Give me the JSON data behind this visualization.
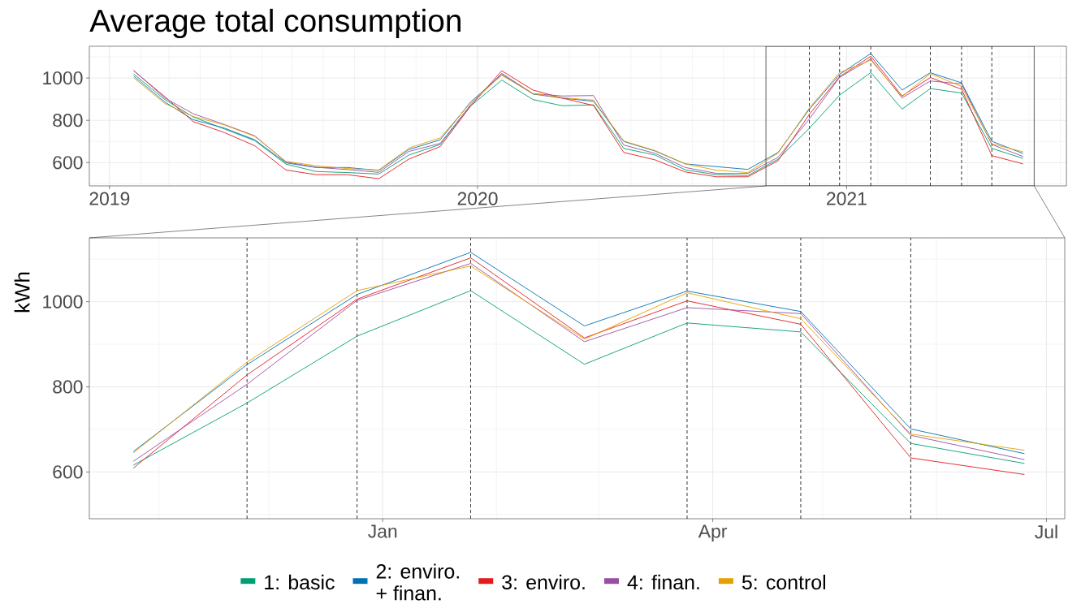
{
  "chart_data": [
    {
      "type": "line",
      "title": "Average total consumption",
      "x": [
        "2019-01-25",
        "2019-02-25",
        "2019-03-25",
        "2019-04-25",
        "2019-05-25",
        "2019-06-25",
        "2019-07-25",
        "2019-08-25",
        "2019-09-25",
        "2019-10-25",
        "2019-11-25",
        "2019-12-25",
        "2020-01-25",
        "2020-02-25",
        "2020-03-25",
        "2020-04-25",
        "2020-05-25",
        "2020-06-25",
        "2020-07-25",
        "2020-08-25",
        "2020-09-25",
        "2020-10-25",
        "2020-11-25",
        "2020-12-25",
        "2021-01-25",
        "2021-02-25",
        "2021-03-25",
        "2021-04-25",
        "2021-05-25",
        "2021-06-25"
      ],
      "series": [
        {
          "color": "#009e73",
          "values": [
            1019,
            898,
            816,
            759,
            704,
            593,
            558,
            553,
            546,
            636,
            686,
            867,
            990,
            898,
            869,
            873,
            667,
            636,
            566,
            543,
            539,
            616,
            762,
            919,
            1026,
            853,
            950,
            929,
            667,
            620
          ]
        },
        {
          "color": "#0072b2",
          "values": [
            1009,
            886,
            803,
            763,
            708,
            599,
            577,
            577,
            563,
            662,
            708,
            886,
            1017,
            924,
            905,
            890,
            700,
            655,
            594,
            581,
            568,
            648,
            852,
            1017,
            1116,
            943,
            1025,
            977,
            701,
            643
          ]
        },
        {
          "color": "#e41a1c",
          "values": [
            1034,
            911,
            794,
            742,
            680,
            565,
            543,
            543,
            524,
            617,
            676,
            867,
            1034,
            943,
            905,
            870,
            648,
            613,
            556,
            533,
            533,
            609,
            828,
            1006,
            1103,
            915,
            1002,
            947,
            633,
            594
          ]
        },
        {
          "color": "#984ea3",
          "values": [
            1036,
            905,
            831,
            780,
            727,
            603,
            578,
            567,
            554,
            653,
            691,
            873,
            1022,
            926,
            915,
            917,
            683,
            644,
            577,
            549,
            549,
            625,
            806,
            1003,
            1090,
            906,
            986,
            972,
            686,
            629
          ]
        },
        {
          "color": "#e69f00",
          "values": [
            1000,
            879,
            818,
            778,
            724,
            606,
            585,
            572,
            565,
            669,
            717,
            882,
            1013,
            926,
            907,
            895,
            702,
            657,
            594,
            564,
            553,
            645,
            858,
            1026,
            1084,
            912,
            1021,
            960,
            689,
            651
          ]
        }
      ],
      "xlim": [
        "2018-12-12",
        "2021-08-07"
      ],
      "xticks": [
        {
          "value": "2019-01-01",
          "label": "2019"
        },
        {
          "value": "2020-01-01",
          "label": "2020"
        },
        {
          "value": "2021-01-01",
          "label": "2021"
        }
      ],
      "ylim": [
        490,
        1150
      ],
      "yticks": [
        600,
        800,
        1000
      ],
      "grid": true,
      "ref_lines": [
        {
          "axis": "x",
          "value": "2020-11-25",
          "line_style": "dashed"
        },
        {
          "axis": "x",
          "value": "2020-12-25",
          "line_style": "dashed"
        },
        {
          "axis": "x",
          "value": "2021-01-25",
          "line_style": "dashed"
        },
        {
          "axis": "x",
          "value": "2021-03-25",
          "line_style": "dashed"
        },
        {
          "axis": "x",
          "value": "2021-04-25",
          "line_style": "dashed"
        },
        {
          "axis": "x",
          "value": "2021-05-25",
          "line_style": "dashed"
        }
      ]
    },
    {
      "type": "line",
      "ylabel": "kWh",
      "x": [
        "2020-10-25",
        "2020-11-25",
        "2020-12-25",
        "2021-01-25",
        "2021-02-25",
        "2021-03-25",
        "2021-04-25",
        "2021-05-25",
        "2021-06-25"
      ],
      "series": [
        {
          "name": "1: basic",
          "color": "#009e73",
          "values": [
            616,
            762,
            919,
            1026,
            853,
            950,
            929,
            667,
            620
          ]
        },
        {
          "name": "2: enviro. + finan.",
          "color": "#0072b2",
          "values": [
            648,
            852,
            1017,
            1116,
            943,
            1025,
            977,
            701,
            643
          ]
        },
        {
          "name": "3: enviro.",
          "color": "#e41a1c",
          "values": [
            609,
            828,
            1006,
            1103,
            915,
            1002,
            947,
            633,
            594
          ]
        },
        {
          "name": "4: finan.",
          "color": "#984ea3",
          "values": [
            625,
            806,
            1003,
            1090,
            906,
            986,
            972,
            686,
            629
          ]
        },
        {
          "name": "5: control",
          "color": "#e69f00",
          "values": [
            645,
            858,
            1026,
            1084,
            912,
            1021,
            960,
            689,
            651
          ]
        }
      ],
      "xlim": [
        "2020-10-13",
        "2021-07-06"
      ],
      "xticks": [
        {
          "value": "2021-01-01",
          "label": "Jan"
        },
        {
          "value": "2021-04-01",
          "label": "Apr"
        },
        {
          "value": "2021-07-01",
          "label": "Jul"
        }
      ],
      "ylim": [
        490,
        1150
      ],
      "yticks": [
        600,
        800,
        1000
      ],
      "grid": true,
      "legend": "bottom",
      "ref_lines": [
        {
          "axis": "x",
          "value": "2020-11-25",
          "line_style": "dashed"
        },
        {
          "axis": "x",
          "value": "2020-12-25",
          "line_style": "dashed"
        },
        {
          "axis": "x",
          "value": "2021-01-25",
          "line_style": "dashed"
        },
        {
          "axis": "x",
          "value": "2021-03-25",
          "line_style": "dashed"
        },
        {
          "axis": "x",
          "value": "2021-04-25",
          "line_style": "dashed"
        },
        {
          "axis": "x",
          "value": "2021-05-25",
          "line_style": "dashed"
        }
      ]
    }
  ]
}
